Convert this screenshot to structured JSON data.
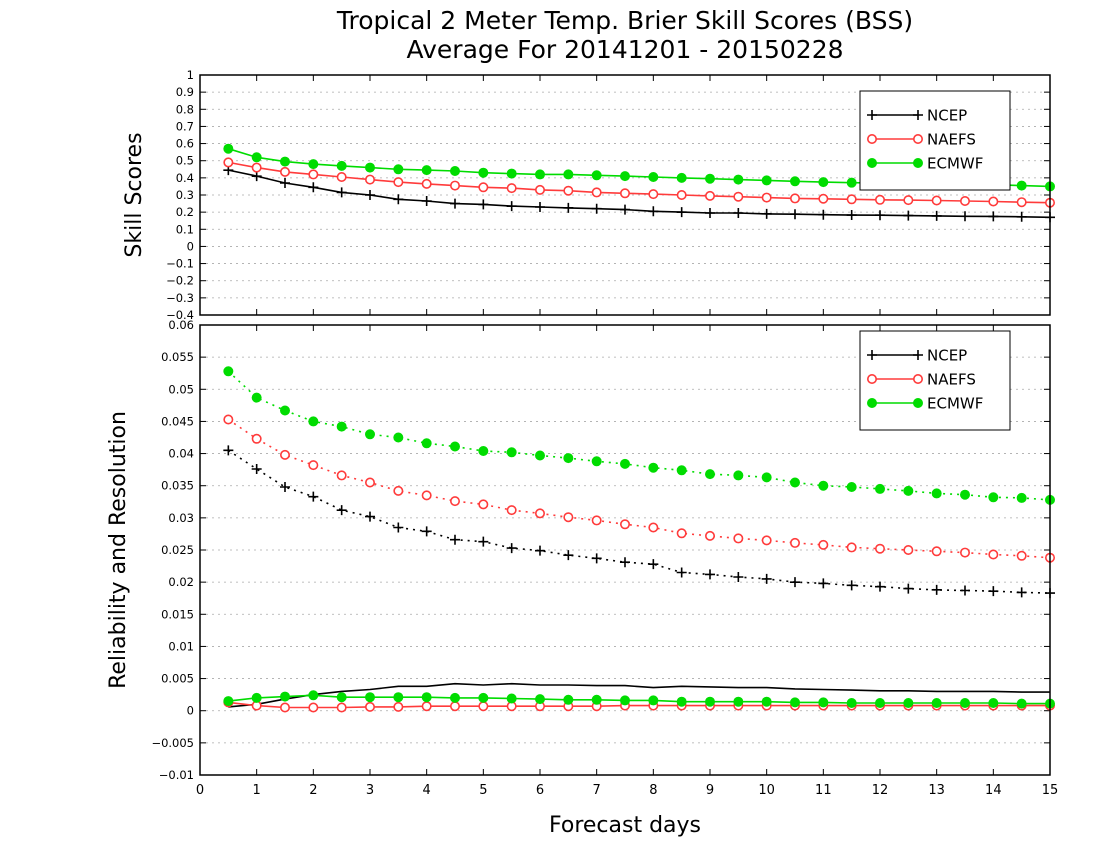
{
  "chart_data": [
    {
      "type": "line",
      "title": "Tropical 2 Meter Temp. Brier Skill Scores (BSS)",
      "subtitle": "Average For 20141201 - 20150228",
      "xlabel": "",
      "ylabel": "Skill Scores",
      "xlim": [
        0,
        15
      ],
      "ylim": [
        -0.4,
        1
      ],
      "yticks": [
        "1",
        "0.9",
        "0.8",
        "0.7",
        "0.6",
        "0.5",
        "0.4",
        "0.3",
        "0.2",
        "0.1",
        "0",
        "−0.1",
        "−0.2",
        "−0.3",
        "−0.4"
      ],
      "grid": true,
      "legend_placement": "top-right",
      "x": [
        0.5,
        1,
        1.5,
        2,
        2.5,
        3,
        3.5,
        4,
        4.5,
        5,
        5.5,
        6,
        6.5,
        7,
        7.5,
        8,
        8.5,
        9,
        9.5,
        10,
        10.5,
        11,
        11.5,
        12,
        12.5,
        13,
        13.5,
        14,
        14.5,
        15
      ],
      "series": [
        {
          "name": "NCEP",
          "color": "#000000",
          "marker": "plus",
          "values": [
            0.445,
            0.41,
            0.37,
            0.345,
            0.315,
            0.3,
            0.275,
            0.265,
            0.25,
            0.245,
            0.235,
            0.23,
            0.225,
            0.22,
            0.215,
            0.205,
            0.2,
            0.195,
            0.195,
            0.19,
            0.188,
            0.185,
            0.183,
            0.182,
            0.18,
            0.178,
            0.176,
            0.175,
            0.173,
            0.17
          ]
        },
        {
          "name": "NAEFS",
          "color": "#ff3b3b",
          "marker": "open-circle",
          "values": [
            0.49,
            0.46,
            0.435,
            0.42,
            0.405,
            0.39,
            0.375,
            0.365,
            0.355,
            0.345,
            0.34,
            0.33,
            0.325,
            0.315,
            0.31,
            0.305,
            0.3,
            0.295,
            0.29,
            0.285,
            0.28,
            0.278,
            0.275,
            0.272,
            0.27,
            0.268,
            0.265,
            0.262,
            0.258,
            0.255
          ]
        },
        {
          "name": "ECMWF",
          "color": "#00dc00",
          "marker": "filled-circle",
          "values": [
            0.57,
            0.52,
            0.495,
            0.48,
            0.47,
            0.46,
            0.45,
            0.445,
            0.44,
            0.43,
            0.425,
            0.42,
            0.42,
            0.415,
            0.41,
            0.405,
            0.4,
            0.395,
            0.39,
            0.385,
            0.38,
            0.375,
            0.372,
            0.37,
            0.368,
            0.365,
            0.362,
            0.36,
            0.355,
            0.35
          ]
        }
      ]
    },
    {
      "type": "line",
      "title": "",
      "xlabel": "Forecast days",
      "ylabel": "Reliability and Resolution",
      "xlim": [
        0,
        15
      ],
      "ylim": [
        -0.01,
        0.06
      ],
      "xticks": [
        "0",
        "1",
        "2",
        "3",
        "4",
        "5",
        "6",
        "7",
        "8",
        "9",
        "10",
        "11",
        "12",
        "13",
        "14",
        "15"
      ],
      "yticks": [
        "0.06",
        "0.055",
        "0.05",
        "0.045",
        "0.04",
        "0.035",
        "0.03",
        "0.025",
        "0.02",
        "0.015",
        "0.01",
        "0.005",
        "0",
        "−0.005",
        "−0.01"
      ],
      "grid": true,
      "legend_placement": "top-right",
      "x": [
        0.5,
        1,
        1.5,
        2,
        2.5,
        3,
        3.5,
        4,
        4.5,
        5,
        5.5,
        6,
        6.5,
        7,
        7.5,
        8,
        8.5,
        9,
        9.5,
        10,
        10.5,
        11,
        11.5,
        12,
        12.5,
        13,
        13.5,
        14,
        14.5,
        15
      ],
      "series": [
        {
          "name": "NCEP",
          "kind": "resolution",
          "color": "#000000",
          "marker": "plus",
          "line": "dotted",
          "values": [
            0.0405,
            0.0376,
            0.0348,
            0.0333,
            0.0312,
            0.0302,
            0.0285,
            0.0279,
            0.0266,
            0.0263,
            0.0253,
            0.0249,
            0.0242,
            0.0237,
            0.0231,
            0.0228,
            0.0215,
            0.0212,
            0.0208,
            0.0205,
            0.02,
            0.0198,
            0.0195,
            0.0193,
            0.019,
            0.0188,
            0.0187,
            0.0186,
            0.0184,
            0.0183
          ]
        },
        {
          "name": "NAEFS",
          "kind": "resolution",
          "color": "#ff3b3b",
          "marker": "open-circle",
          "line": "dotted",
          "values": [
            0.0453,
            0.0423,
            0.0398,
            0.0382,
            0.0366,
            0.0355,
            0.0342,
            0.0335,
            0.0326,
            0.0321,
            0.0312,
            0.0307,
            0.0301,
            0.0296,
            0.029,
            0.0285,
            0.0276,
            0.0272,
            0.0268,
            0.0265,
            0.0261,
            0.0258,
            0.0254,
            0.0252,
            0.025,
            0.0248,
            0.0246,
            0.0243,
            0.0241,
            0.0238
          ]
        },
        {
          "name": "ECMWF",
          "kind": "resolution",
          "color": "#00dc00",
          "marker": "filled-circle",
          "line": "dotted",
          "values": [
            0.0528,
            0.0487,
            0.0467,
            0.045,
            0.0442,
            0.043,
            0.0425,
            0.0416,
            0.0411,
            0.0404,
            0.0402,
            0.0397,
            0.0393,
            0.0388,
            0.0384,
            0.0378,
            0.0374,
            0.0368,
            0.0366,
            0.0363,
            0.0355,
            0.035,
            0.0348,
            0.0345,
            0.0342,
            0.0338,
            0.0336,
            0.0332,
            0.0331,
            0.0328
          ]
        },
        {
          "name": "NCEP",
          "kind": "reliability",
          "color": "#000000",
          "marker": "none",
          "line": "solid",
          "values": [
            0.0006,
            0.001,
            0.0018,
            0.0025,
            0.003,
            0.0033,
            0.0038,
            0.0038,
            0.0042,
            0.004,
            0.0042,
            0.004,
            0.004,
            0.0039,
            0.0039,
            0.0036,
            0.0038,
            0.0037,
            0.0036,
            0.0036,
            0.0034,
            0.0033,
            0.0032,
            0.0031,
            0.0031,
            0.003,
            0.003,
            0.003,
            0.0029,
            0.0029
          ]
        },
        {
          "name": "NAEFS",
          "kind": "reliability",
          "color": "#ff3b3b",
          "marker": "open-circle",
          "line": "solid",
          "values": [
            0.0013,
            0.0008,
            0.0005,
            0.0005,
            0.0005,
            0.0006,
            0.0006,
            0.0007,
            0.0007,
            0.0007,
            0.0007,
            0.0007,
            0.0007,
            0.0007,
            0.0008,
            0.0008,
            0.0008,
            0.0008,
            0.0008,
            0.0008,
            0.0008,
            0.0008,
            0.0008,
            0.0008,
            0.0008,
            0.0008,
            0.0008,
            0.0008,
            0.0008,
            0.0008
          ]
        },
        {
          "name": "ECMWF",
          "kind": "reliability",
          "color": "#00dc00",
          "marker": "filled-circle",
          "line": "solid",
          "values": [
            0.0015,
            0.002,
            0.0022,
            0.0024,
            0.0021,
            0.0021,
            0.0021,
            0.0021,
            0.002,
            0.002,
            0.0019,
            0.0018,
            0.0017,
            0.0017,
            0.0016,
            0.0016,
            0.0014,
            0.0014,
            0.0014,
            0.0014,
            0.0013,
            0.0013,
            0.0012,
            0.0012,
            0.0012,
            0.0012,
            0.0012,
            0.0012,
            0.0011,
            0.0011
          ]
        }
      ]
    }
  ]
}
